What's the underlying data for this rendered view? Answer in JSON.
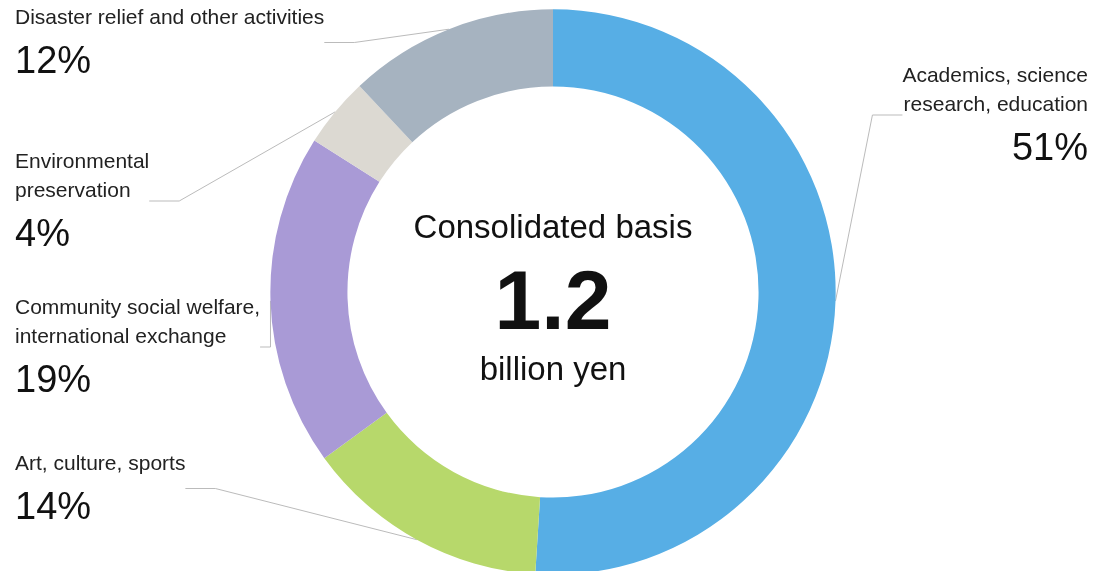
{
  "chart_data": {
    "type": "donut",
    "categories": [
      "Academics, science research, education",
      "Art, culture, sports",
      "Community social welfare, international exchange",
      "Environmental preservation",
      "Disaster relief and other activities"
    ],
    "values": [
      51,
      14,
      19,
      4,
      12
    ],
    "colors": [
      "#57aee5",
      "#b7d86b",
      "#a99ad6",
      "#dcd9d2",
      "#a6b3c0"
    ],
    "value_labels": [
      "51%",
      "14%",
      "19%",
      "4%",
      "12%"
    ],
    "legend": false,
    "annotations": [
      "Consolidated basis",
      "1.2",
      "billion yen"
    ]
  }
}
